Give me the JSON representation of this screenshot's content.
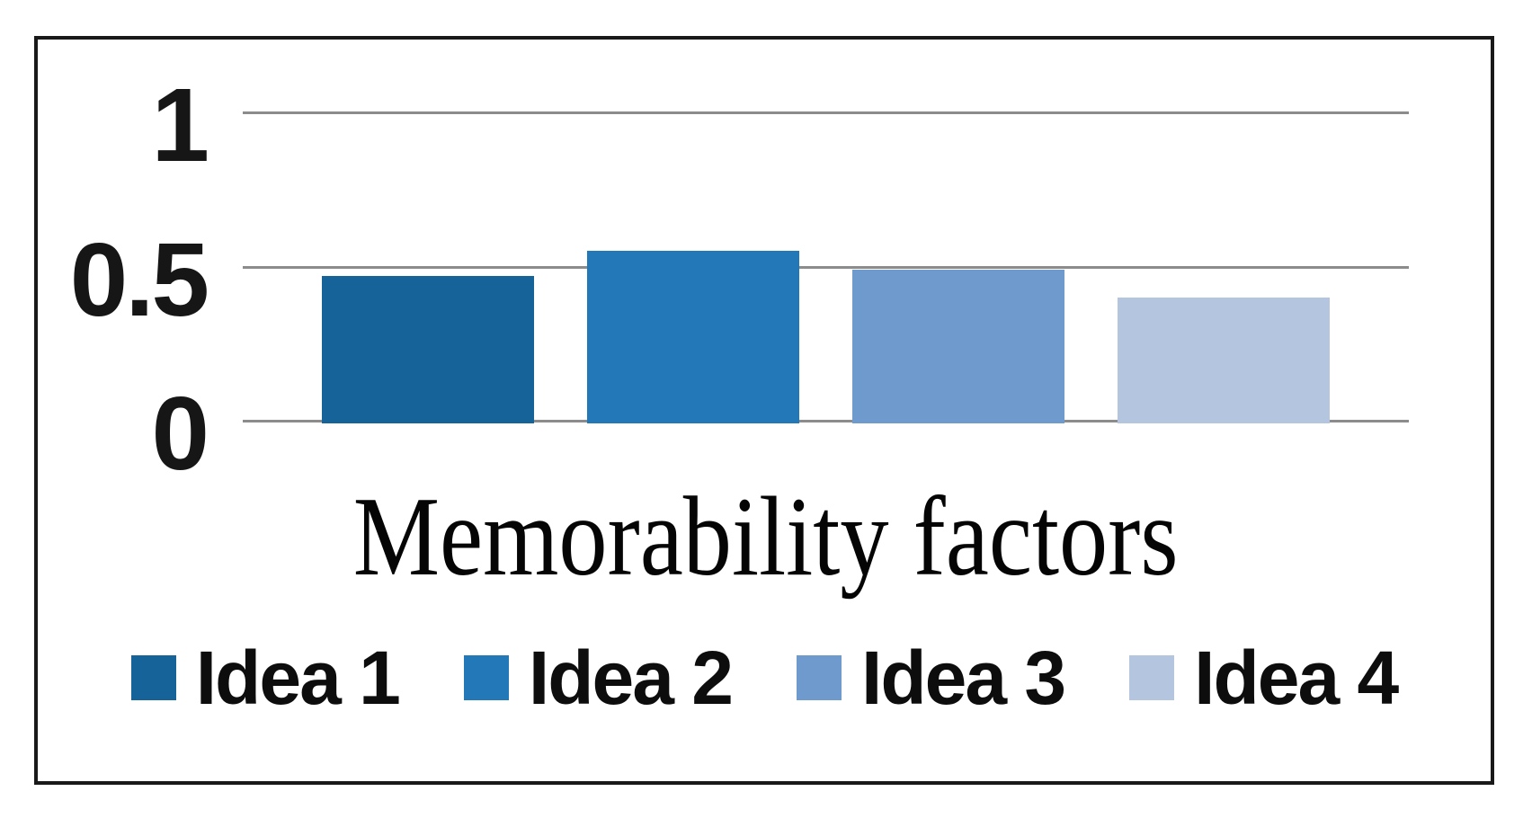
{
  "chart_data": {
    "type": "bar",
    "title": "Memorability factors",
    "categories": [
      "Idea 1",
      "Idea 2",
      "Idea 3",
      "Idea 4"
    ],
    "values": [
      0.47,
      0.55,
      0.49,
      0.4
    ],
    "bar_colors": [
      "#16639A",
      "#2379B7",
      "#6F9ACD",
      "#B3C5DF"
    ],
    "xlabel": "",
    "ylabel": "",
    "ylim": [
      0,
      1
    ],
    "yticks": [
      {
        "value": 1,
        "label": "1"
      },
      {
        "value": 0.5,
        "label": "0.5"
      },
      {
        "value": 0,
        "label": "0"
      }
    ],
    "grid": true,
    "gridline_color": "#8C8C8C",
    "frame_color": "#191919",
    "text_color": "#161616",
    "legend": {
      "position": "bottom",
      "entries": [
        {
          "label": "Idea 1",
          "color": "#16639A"
        },
        {
          "label": "Idea 2",
          "color": "#2379B7"
        },
        {
          "label": "Idea 3",
          "color": "#6F9ACD"
        },
        {
          "label": "Idea 4",
          "color": "#B3C5DF"
        }
      ]
    }
  }
}
